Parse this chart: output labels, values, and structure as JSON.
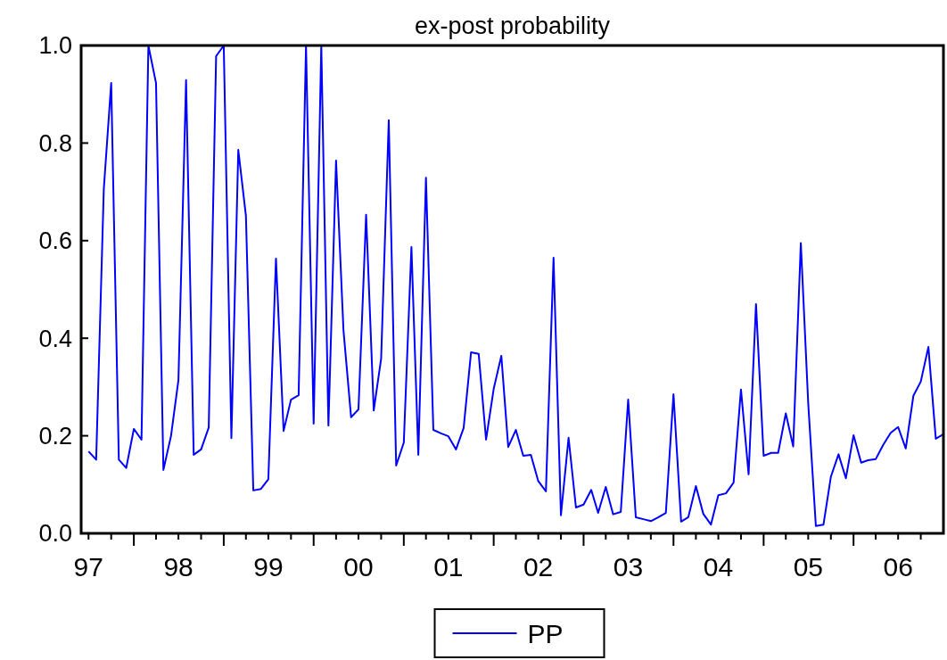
{
  "chart_data": {
    "type": "line",
    "title": "ex-post probability",
    "legend": "bottom",
    "x": [
      "1997-07",
      "1997-08",
      "1997-09",
      "1997-10",
      "1997-11",
      "1997-12",
      "1998-01",
      "1998-02",
      "1998-03",
      "1998-04",
      "1998-05",
      "1998-06",
      "1998-07",
      "1998-08",
      "1998-09",
      "1998-10",
      "1998-11",
      "1998-12",
      "1999-01",
      "1999-02",
      "1999-03",
      "1999-04",
      "1999-05",
      "1999-06",
      "1999-07",
      "1999-08",
      "1999-09",
      "1999-10",
      "1999-11",
      "1999-12",
      "2000-01",
      "2000-02",
      "2000-03",
      "2000-04",
      "2000-05",
      "2000-06",
      "2000-07",
      "2000-08",
      "2000-09",
      "2000-10",
      "2000-11",
      "2000-12",
      "2001-01",
      "2001-02",
      "2001-03",
      "2001-04",
      "2001-05",
      "2001-06",
      "2001-07",
      "2001-08",
      "2001-09",
      "2001-10",
      "2001-11",
      "2001-12",
      "2002-01",
      "2002-02",
      "2002-03",
      "2002-04",
      "2002-05",
      "2002-06",
      "2002-07",
      "2002-08",
      "2002-09",
      "2002-10",
      "2002-11",
      "2002-12",
      "2003-01",
      "2003-02",
      "2003-03",
      "2003-04",
      "2003-05",
      "2003-06",
      "2003-07",
      "2003-08",
      "2003-09",
      "2003-10",
      "2003-11",
      "2003-12",
      "2004-01",
      "2004-02",
      "2004-03",
      "2004-04",
      "2004-05",
      "2004-06",
      "2004-07",
      "2004-08",
      "2004-09",
      "2004-10",
      "2004-11",
      "2004-12",
      "2005-01",
      "2005-02",
      "2005-03",
      "2005-04",
      "2005-05",
      "2005-06",
      "2005-07",
      "2005-08",
      "2005-09",
      "2005-10",
      "2005-11",
      "2005-12",
      "2006-01",
      "2006-02",
      "2006-03",
      "2006-04",
      "2006-05",
      "2006-06",
      "2006-07",
      "2006-08",
      "2006-09",
      "2006-10",
      "2006-11",
      "2006-12",
      "2007-01"
    ],
    "series": [
      {
        "name": "PP",
        "color": "#0000ff",
        "values": [
          0.168,
          0.151,
          0.706,
          0.923,
          0.151,
          0.134,
          0.214,
          0.192,
          1.0,
          0.923,
          0.13,
          0.2,
          0.314,
          0.929,
          0.161,
          0.172,
          0.217,
          0.978,
          1.0,
          0.195,
          0.786,
          0.651,
          0.088,
          0.091,
          0.111,
          0.563,
          0.21,
          0.274,
          0.283,
          1.0,
          0.225,
          1.0,
          0.221,
          0.764,
          0.417,
          0.238,
          0.254,
          0.653,
          0.252,
          0.358,
          0.847,
          0.139,
          0.186,
          0.587,
          0.161,
          0.729,
          0.212,
          0.205,
          0.199,
          0.172,
          0.216,
          0.371,
          0.368,
          0.192,
          0.296,
          0.364,
          0.177,
          0.212,
          0.159,
          0.161,
          0.107,
          0.086,
          0.565,
          0.037,
          0.196,
          0.053,
          0.059,
          0.089,
          0.042,
          0.095,
          0.039,
          0.044,
          0.274,
          0.033,
          0.029,
          0.025,
          0.033,
          0.042,
          0.285,
          0.024,
          0.033,
          0.097,
          0.04,
          0.018,
          0.078,
          0.082,
          0.104,
          0.295,
          0.121,
          0.47,
          0.159,
          0.165,
          0.165,
          0.246,
          0.178,
          0.595,
          0.267,
          0.015,
          0.018,
          0.116,
          0.162,
          0.113,
          0.201,
          0.145,
          0.15,
          0.152,
          0.181,
          0.206,
          0.218,
          0.174,
          0.282,
          0.311,
          0.382,
          0.194,
          0.203
        ]
      }
    ],
    "xlim": [
      "1997-06",
      "2007-01"
    ],
    "xticks": [
      {
        "value": "1997-07",
        "label": "97"
      },
      {
        "value": "1997-10",
        "label": null
      },
      {
        "value": "1998-01",
        "label": null
      },
      {
        "value": "1998-04",
        "label": null
      },
      {
        "value": "1998-07",
        "label": "98"
      },
      {
        "value": "1998-10",
        "label": null
      },
      {
        "value": "1999-01",
        "label": null
      },
      {
        "value": "1999-04",
        "label": null
      },
      {
        "value": "1999-07",
        "label": "99"
      },
      {
        "value": "1999-10",
        "label": null
      },
      {
        "value": "2000-01",
        "label": null
      },
      {
        "value": "2000-04",
        "label": null
      },
      {
        "value": "2000-07",
        "label": "00"
      },
      {
        "value": "2000-10",
        "label": null
      },
      {
        "value": "2001-01",
        "label": null
      },
      {
        "value": "2001-04",
        "label": null
      },
      {
        "value": "2001-07",
        "label": "01"
      },
      {
        "value": "2001-10",
        "label": null
      },
      {
        "value": "2002-01",
        "label": null
      },
      {
        "value": "2002-04",
        "label": null
      },
      {
        "value": "2002-07",
        "label": "02"
      },
      {
        "value": "2002-10",
        "label": null
      },
      {
        "value": "2003-01",
        "label": null
      },
      {
        "value": "2003-04",
        "label": null
      },
      {
        "value": "2003-07",
        "label": "03"
      },
      {
        "value": "2003-10",
        "label": null
      },
      {
        "value": "2004-01",
        "label": null
      },
      {
        "value": "2004-04",
        "label": null
      },
      {
        "value": "2004-07",
        "label": "04"
      },
      {
        "value": "2004-10",
        "label": null
      },
      {
        "value": "2005-01",
        "label": null
      },
      {
        "value": "2005-04",
        "label": null
      },
      {
        "value": "2005-07",
        "label": "05"
      },
      {
        "value": "2005-10",
        "label": null
      },
      {
        "value": "2006-01",
        "label": null
      },
      {
        "value": "2006-04",
        "label": null
      },
      {
        "value": "2006-07",
        "label": "06"
      },
      {
        "value": "2006-10",
        "label": null
      }
    ],
    "ylim": [
      0,
      1
    ],
    "yticks": [
      {
        "value": 0,
        "label": "0.0"
      },
      {
        "value": 0.2,
        "label": "0.2"
      },
      {
        "value": 0.4,
        "label": "0.4"
      },
      {
        "value": 0.6,
        "label": "0.6"
      },
      {
        "value": 0.8,
        "label": "0.8"
      },
      {
        "value": 1,
        "label": "1.0"
      }
    ]
  }
}
